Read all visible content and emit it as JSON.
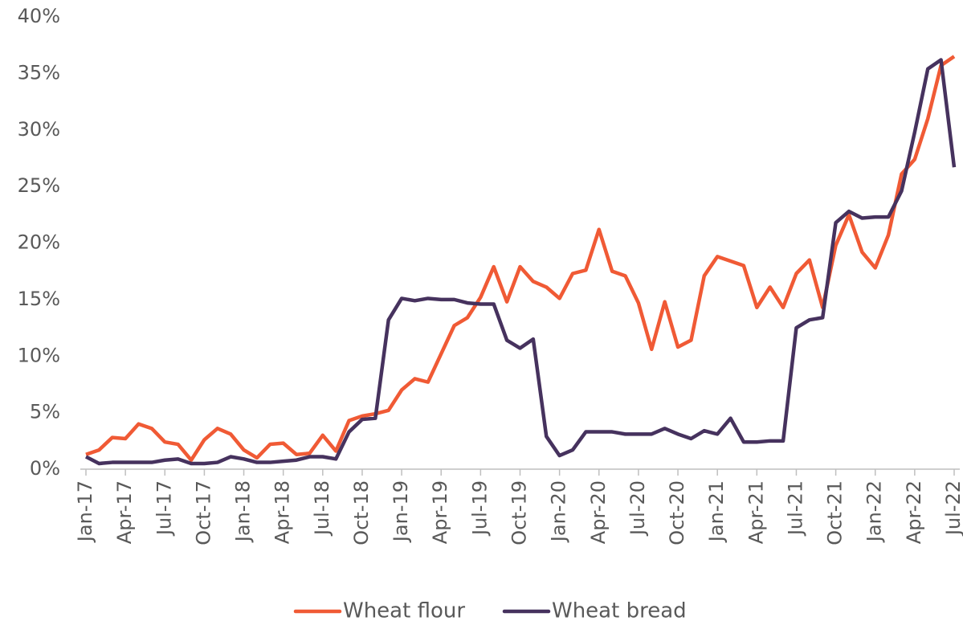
{
  "chart_data": {
    "type": "line",
    "categories": [
      "Jan-17",
      null,
      null,
      "Apr-17",
      null,
      null,
      "Jul-17",
      null,
      null,
      "Oct-17",
      null,
      null,
      "Jan-18",
      null,
      null,
      "Apr-18",
      null,
      null,
      "Jul-18",
      null,
      null,
      "Oct-18",
      null,
      null,
      "Jan-19",
      null,
      null,
      "Apr-19",
      null,
      null,
      "Jul-19",
      null,
      null,
      "Oct-19",
      null,
      null,
      "Jan-20",
      null,
      null,
      "Apr-20",
      null,
      null,
      "Jul-20",
      null,
      null,
      "Oct-20",
      null,
      null,
      "Jan-21",
      null,
      null,
      "Apr-21",
      null,
      null,
      "Jul-21",
      null,
      null,
      "Oct-21",
      null,
      null,
      "Jan-22",
      null,
      null,
      "Apr-22",
      null,
      null,
      "Jul-22"
    ],
    "series": [
      {
        "name": "Wheat flour",
        "color": "#f05a35",
        "values": [
          1.3,
          1.7,
          2.8,
          2.7,
          4.0,
          3.6,
          2.4,
          2.2,
          0.8,
          2.6,
          3.6,
          3.1,
          1.7,
          1.0,
          2.2,
          2.3,
          1.3,
          1.4,
          3.0,
          1.6,
          4.3,
          4.7,
          4.9,
          5.2,
          7.0,
          8.0,
          7.7,
          10.2,
          12.7,
          13.4,
          15.2,
          17.9,
          14.8,
          17.9,
          16.6,
          16.1,
          15.1,
          17.3,
          17.6,
          21.2,
          17.5,
          17.1,
          14.7,
          10.6,
          14.8,
          10.8,
          11.4,
          17.1,
          18.8,
          18.4,
          18.0,
          14.3,
          16.1,
          14.3,
          17.3,
          18.5,
          14.3,
          19.8,
          22.5,
          19.2,
          17.8,
          20.7,
          26.1,
          27.4,
          31.0,
          35.7,
          36.5
        ]
      },
      {
        "name": "Wheat bread",
        "color": "#46325e",
        "values": [
          1.1,
          0.5,
          0.6,
          0.6,
          0.6,
          0.6,
          0.8,
          0.9,
          0.5,
          0.5,
          0.6,
          1.1,
          0.9,
          0.6,
          0.6,
          0.7,
          0.8,
          1.1,
          1.1,
          0.9,
          3.3,
          4.4,
          4.5,
          13.2,
          15.1,
          14.9,
          15.1,
          15.0,
          15.0,
          14.7,
          14.6,
          14.6,
          11.4,
          10.7,
          11.5,
          2.9,
          1.2,
          1.7,
          3.3,
          3.3,
          3.3,
          3.1,
          3.1,
          3.1,
          3.6,
          3.1,
          2.7,
          3.4,
          3.1,
          4.5,
          2.4,
          2.4,
          2.5,
          2.5,
          12.5,
          13.2,
          13.4,
          21.8,
          22.8,
          22.2,
          22.3,
          22.3,
          24.6,
          29.8,
          35.4,
          36.2,
          26.7
        ]
      }
    ],
    "ylim": [
      0,
      40
    ],
    "yticks": [
      {
        "value": 0,
        "label": "0%"
      },
      {
        "value": 5,
        "label": "5%"
      },
      {
        "value": 10,
        "label": "10%"
      },
      {
        "value": 15,
        "label": "15%"
      },
      {
        "value": 20,
        "label": "20%"
      },
      {
        "value": 25,
        "label": "25%"
      },
      {
        "value": 30,
        "label": "30%"
      },
      {
        "value": 35,
        "label": "35%"
      },
      {
        "value": 40,
        "label": "40%"
      }
    ],
    "legend": "bottom"
  }
}
